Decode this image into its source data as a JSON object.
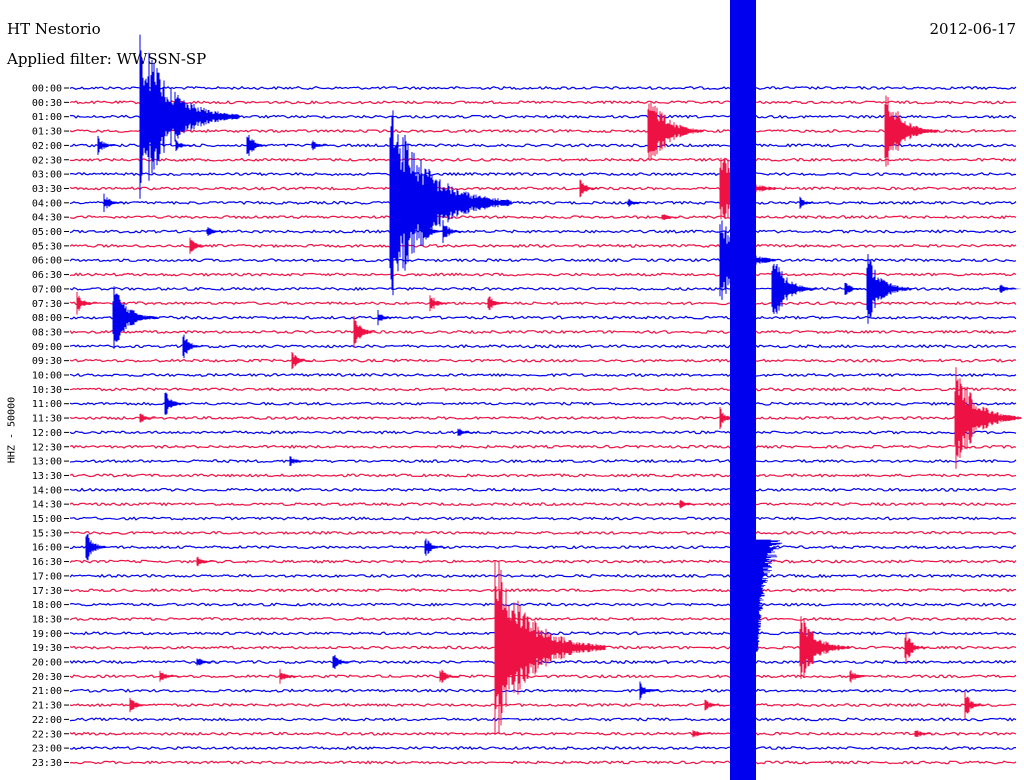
{
  "header": {
    "station": "HT Nestorio",
    "filter": "Applied filter: WWSSN-SP",
    "date": "2012-06-17",
    "channel": "HHZ - 50000"
  },
  "colors": {
    "even": "#0000ee",
    "odd": "#ee1144",
    "axis": "#000000"
  },
  "chart_data": {
    "type": "line",
    "title": "HT Nestorio",
    "subtitle": "Applied filter: WWSSN-SP",
    "ylabel": "HHZ - 50000",
    "xlabel": "",
    "row_labels": [
      "00:00",
      "00:30",
      "01:00",
      "01:30",
      "02:00",
      "02:30",
      "03:00",
      "03:30",
      "04:00",
      "04:30",
      "05:00",
      "05:30",
      "06:00",
      "06:30",
      "07:00",
      "07:30",
      "08:00",
      "08:30",
      "09:00",
      "09:30",
      "10:00",
      "10:30",
      "11:00",
      "11:30",
      "12:00",
      "12:30",
      "13:00",
      "13:30",
      "14:00",
      "14:30",
      "15:00",
      "15:30",
      "16:00",
      "16:30",
      "17:00",
      "17:30",
      "18:00",
      "18:30",
      "19:00",
      "19:30",
      "20:00",
      "20:30",
      "21:00",
      "21:30",
      "22:00",
      "22:30",
      "23:00",
      "23:30"
    ],
    "series_colors": [
      "blue",
      "red"
    ],
    "events": [
      {
        "row": 2,
        "x": 140,
        "amp": 90
      },
      {
        "row": 3,
        "x": 648,
        "amp": 50
      },
      {
        "row": 3,
        "x": 885,
        "amp": 48
      },
      {
        "row": 4,
        "x": 98,
        "amp": 10
      },
      {
        "row": 4,
        "x": 247,
        "amp": 18
      },
      {
        "row": 4,
        "x": 176,
        "amp": 6
      },
      {
        "row": 4,
        "x": 312,
        "amp": 6
      },
      {
        "row": 7,
        "x": 580,
        "amp": 10
      },
      {
        "row": 7,
        "x": 720,
        "amp": 50
      },
      {
        "row": 8,
        "x": 104,
        "amp": 10
      },
      {
        "row": 8,
        "x": 390,
        "amp": 110
      },
      {
        "row": 8,
        "x": 628,
        "amp": 5
      },
      {
        "row": 8,
        "x": 800,
        "amp": 6
      },
      {
        "row": 9,
        "x": 662,
        "amp": 5
      },
      {
        "row": 10,
        "x": 423,
        "amp": 18
      },
      {
        "row": 10,
        "x": 443,
        "amp": 12
      },
      {
        "row": 10,
        "x": 207,
        "amp": 6
      },
      {
        "row": 11,
        "x": 190,
        "amp": 10
      },
      {
        "row": 12,
        "x": 720,
        "amp": 50
      },
      {
        "row": 14,
        "x": 772,
        "amp": 40
      },
      {
        "row": 14,
        "x": 867,
        "amp": 40
      },
      {
        "row": 14,
        "x": 845,
        "amp": 8
      },
      {
        "row": 14,
        "x": 1000,
        "amp": 6
      },
      {
        "row": 15,
        "x": 77,
        "amp": 12
      },
      {
        "row": 15,
        "x": 430,
        "amp": 12
      },
      {
        "row": 15,
        "x": 488,
        "amp": 10
      },
      {
        "row": 16,
        "x": 113,
        "amp": 40
      },
      {
        "row": 16,
        "x": 378,
        "amp": 8
      },
      {
        "row": 17,
        "x": 354,
        "amp": 20
      },
      {
        "row": 18,
        "x": 183,
        "amp": 15
      },
      {
        "row": 19,
        "x": 292,
        "amp": 10
      },
      {
        "row": 22,
        "x": 165,
        "amp": 15
      },
      {
        "row": 23,
        "x": 720,
        "amp": 12
      },
      {
        "row": 23,
        "x": 955,
        "amp": 60
      },
      {
        "row": 23,
        "x": 140,
        "amp": 6
      },
      {
        "row": 24,
        "x": 458,
        "amp": 6
      },
      {
        "row": 26,
        "x": 290,
        "amp": 6
      },
      {
        "row": 29,
        "x": 680,
        "amp": 6
      },
      {
        "row": 32,
        "x": 86,
        "amp": 20
      },
      {
        "row": 32,
        "x": 425,
        "amp": 12
      },
      {
        "row": 33,
        "x": 197,
        "amp": 6
      },
      {
        "row": 39,
        "x": 495,
        "amp": 100
      },
      {
        "row": 39,
        "x": 545,
        "amp": 22
      },
      {
        "row": 39,
        "x": 800,
        "amp": 45
      },
      {
        "row": 39,
        "x": 905,
        "amp": 20
      },
      {
        "row": 40,
        "x": 333,
        "amp": 12
      },
      {
        "row": 40,
        "x": 197,
        "amp": 6
      },
      {
        "row": 41,
        "x": 160,
        "amp": 8
      },
      {
        "row": 41,
        "x": 280,
        "amp": 8
      },
      {
        "row": 41,
        "x": 440,
        "amp": 10
      },
      {
        "row": 41,
        "x": 850,
        "amp": 8
      },
      {
        "row": 42,
        "x": 640,
        "amp": 10
      },
      {
        "row": 43,
        "x": 130,
        "amp": 8
      },
      {
        "row": 43,
        "x": 965,
        "amp": 15
      },
      {
        "row": 43,
        "x": 705,
        "amp": 6
      },
      {
        "row": 45,
        "x": 693,
        "amp": 6
      },
      {
        "row": 45,
        "x": 915,
        "amp": 6
      }
    ],
    "saturated_band": {
      "x_from": 730,
      "x_to": 756,
      "rows": [
        0,
        47
      ]
    }
  }
}
